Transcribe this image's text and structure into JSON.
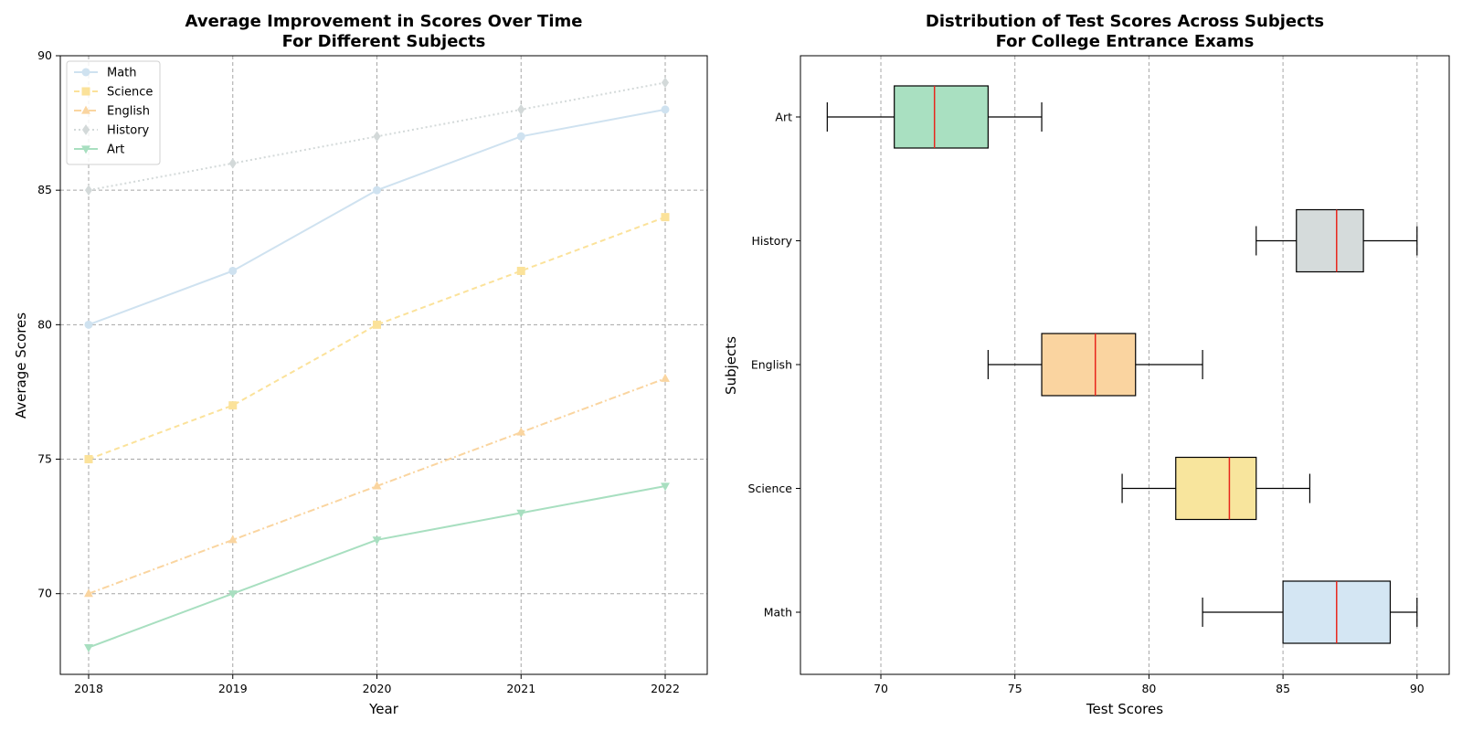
{
  "chart_data": [
    {
      "type": "line",
      "title_lines": [
        "Average Improvement in Scores Over Time",
        "For Different Subjects"
      ],
      "xlabel": "Year",
      "ylabel": "Average Scores",
      "x": [
        "2018",
        "2019",
        "2020",
        "2021",
        "2022"
      ],
      "ylim": [
        67,
        90
      ],
      "yticks": [
        70,
        75,
        80,
        85,
        90
      ],
      "grid": true,
      "legend_position": "upper-left",
      "series": [
        {
          "name": "Math",
          "values": [
            80,
            82,
            85,
            87,
            88
          ],
          "color": "#cfe2f0",
          "marker": "circle",
          "linestyle": "solid"
        },
        {
          "name": "Science",
          "values": [
            75,
            77,
            80,
            82,
            84
          ],
          "color": "#fbe29a",
          "marker": "square",
          "linestyle": "dashed"
        },
        {
          "name": "English",
          "values": [
            70,
            72,
            74,
            76,
            78
          ],
          "color": "#fad5a0",
          "marker": "triangle-up",
          "linestyle": "dashdot"
        },
        {
          "name": "History",
          "values": [
            85,
            86,
            87,
            88,
            89
          ],
          "color": "#d3d9d9",
          "marker": "diamond",
          "linestyle": "dotted"
        },
        {
          "name": "Art",
          "values": [
            68,
            70,
            72,
            73,
            74
          ],
          "color": "#a8dfc0",
          "marker": "triangle-down",
          "linestyle": "solid"
        }
      ]
    },
    {
      "type": "boxplot",
      "orientation": "horizontal",
      "title_lines": [
        "Distribution of Test Scores Across Subjects",
        "For College Entrance Exams"
      ],
      "xlabel": "Test Scores",
      "ylabel": "Subjects",
      "xlim": [
        67,
        91.2
      ],
      "xticks": [
        70,
        75,
        80,
        85,
        90
      ],
      "grid": "vertical",
      "median_color": "#e8261c",
      "categories": [
        "Math",
        "Science",
        "English",
        "History",
        "Art"
      ],
      "boxes": [
        {
          "name": "Math",
          "whisker_low": 82,
          "q1": 85,
          "median": 87,
          "q3": 89,
          "whisker_high": 90,
          "color": "#d4e6f3"
        },
        {
          "name": "Science",
          "whisker_low": 79,
          "q1": 81,
          "median": 83,
          "q3": 84,
          "whisker_high": 86,
          "color": "#f8e59d"
        },
        {
          "name": "English",
          "whisker_low": 74,
          "q1": 76,
          "median": 78,
          "q3": 79.5,
          "whisker_high": 82,
          "color": "#fad4a0"
        },
        {
          "name": "History",
          "whisker_low": 84,
          "q1": 85.5,
          "median": 87,
          "q3": 88,
          "whisker_high": 90,
          "color": "#d5dbdb"
        },
        {
          "name": "Art",
          "whisker_low": 68,
          "q1": 70.5,
          "median": 72,
          "q3": 74,
          "whisker_high": 76,
          "color": "#a9e0c1"
        }
      ]
    }
  ]
}
